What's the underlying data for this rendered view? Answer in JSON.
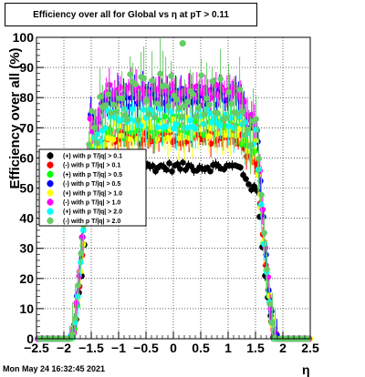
{
  "title": "Efficiency over all for Global vs   η at pT > 0.11",
  "timestamp": "Mon May 24 16:32:45 2021",
  "chart_data": {
    "type": "scatter",
    "title": "Efficiency over all for Global vs   η at pT > 0.11",
    "xlabel": "η",
    "ylabel": "Efficiency over all (%)",
    "xlim": [
      -2.5,
      2.5
    ],
    "ylim": [
      0,
      100
    ],
    "xticks": [
      -2.5,
      -2,
      -1.5,
      -1,
      -0.5,
      0,
      0.5,
      1,
      1.5,
      2,
      2.5
    ],
    "xtick_labels": [
      "−2.5",
      "−2",
      "−1.5",
      "−1",
      "−0.5",
      "0",
      "0.5",
      "1",
      "1.5",
      "2",
      "2.5"
    ],
    "yticks": [
      0,
      10,
      20,
      30,
      40,
      50,
      60,
      70,
      80,
      90,
      100
    ],
    "grid": true,
    "legend_position": "left-center",
    "series": [
      {
        "name": "(+) with p T/|q| > 0.1",
        "color": "#000000",
        "plateau": 57,
        "spread": 1.5,
        "err": 1.2,
        "offset": 0.0
      },
      {
        "name": "(-) with p T/|q| > 0.1",
        "color": "#ff0000",
        "plateau": 67,
        "spread": 2.5,
        "err": 3.0,
        "offset": 0.01
      },
      {
        "name": "(+) with p T/|q| > 0.5",
        "color": "#00ff00",
        "plateau": 70,
        "spread": 4.0,
        "err": 4.0,
        "offset": 0.02
      },
      {
        "name": "(-) with p T/|q| > 0.5",
        "color": "#0000ff",
        "plateau": 80,
        "spread": 3.0,
        "err": 4.0,
        "offset": 0.015
      },
      {
        "name": "(+) with p T/|q| > 1.0",
        "color": "#ffff00",
        "plateau": 70,
        "spread": 4.0,
        "err": 6.0,
        "offset": 0.025
      },
      {
        "name": "(-) with p T/|q| > 1.0",
        "color": "#ff00ff",
        "plateau": 82,
        "spread": 2.5,
        "err": 4.0,
        "offset": 0.005
      },
      {
        "name": "(+) with p T/|q| > 2.0",
        "color": "#00ffff",
        "plateau": 73,
        "spread": 3.5,
        "err": 6.0,
        "offset": 0.03
      },
      {
        "name": "(-) with p T/|q| > 2.0",
        "color": "#66cc66",
        "plateau": 80,
        "spread": 8.0,
        "err": 8.0,
        "offset": 0.035
      }
    ]
  }
}
